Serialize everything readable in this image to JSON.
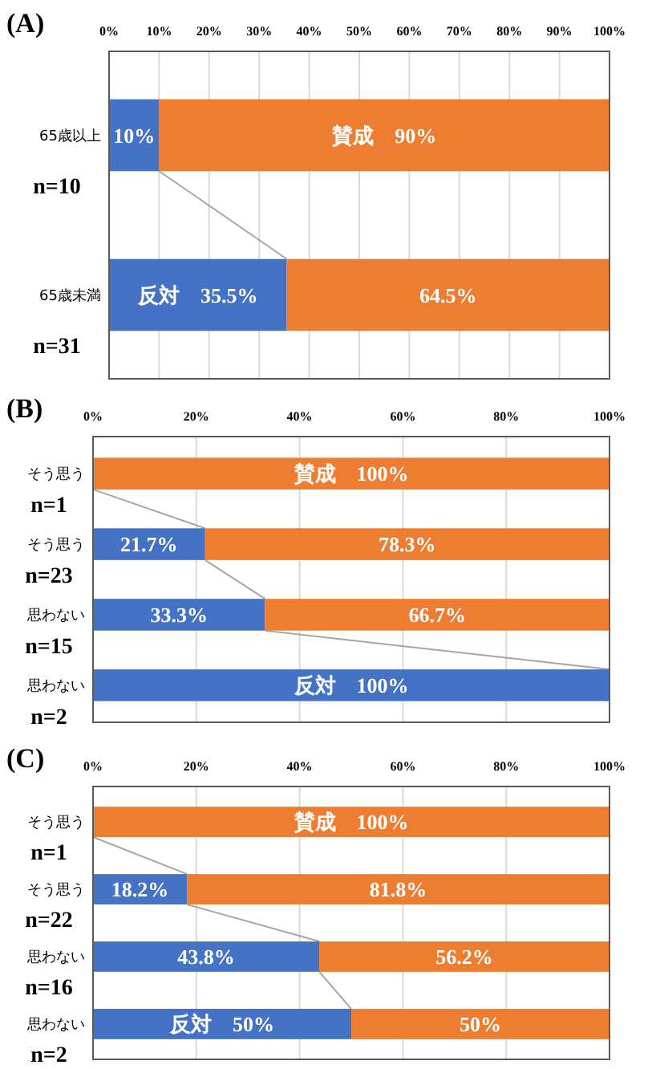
{
  "chart_data": [
    {
      "type": "bar",
      "orientation": "horizontal",
      "stacked": true,
      "title": "(A)",
      "categories": [
        "65歳以上\nn=10",
        "65歳未満\nn=31"
      ],
      "xlim": [
        0,
        100
      ],
      "xticks": [
        {
          "value": 0,
          "label": "0%"
        },
        {
          "value": 10,
          "label": "10%"
        },
        {
          "value": 20,
          "label": "20%"
        },
        {
          "value": 30,
          "label": "30%"
        },
        {
          "value": 40,
          "label": "40%"
        },
        {
          "value": 50,
          "label": "50%"
        },
        {
          "value": 60,
          "label": "60%"
        },
        {
          "value": 70,
          "label": "70%"
        },
        {
          "value": 80,
          "label": "80%"
        },
        {
          "value": 90,
          "label": "90%"
        },
        {
          "value": 100,
          "label": "100%"
        }
      ],
      "grid": "x",
      "series": [
        {
          "color": "#4472c4",
          "values": [
            10,
            35.5
          ],
          "value_labels": [
            "10%",
            "反対　35.5%"
          ]
        },
        {
          "color": "#ed7d31",
          "values": [
            90,
            64.5
          ],
          "value_labels": [
            "賛成　90%",
            "64.5%"
          ]
        }
      ]
    },
    {
      "type": "bar",
      "orientation": "horizontal",
      "stacked": true,
      "title": "(B)",
      "categories": [
        "そう思う\nn=1",
        "そう思う\nn=23",
        "思わない\nn=15",
        "思わない\nn=2"
      ],
      "xlim": [
        0,
        100
      ],
      "xticks": [
        {
          "value": 0,
          "label": "0%"
        },
        {
          "value": 20,
          "label": "20%"
        },
        {
          "value": 40,
          "label": "40%"
        },
        {
          "value": 60,
          "label": "60%"
        },
        {
          "value": 80,
          "label": "80%"
        },
        {
          "value": 100,
          "label": "100%"
        }
      ],
      "grid": "x",
      "series": [
        {
          "color": "#4472c4",
          "values": [
            0,
            21.7,
            33.3,
            100
          ],
          "value_labels": [
            null,
            "21.7%",
            "33.3%",
            "反対　100%"
          ]
        },
        {
          "color": "#ed7d31",
          "values": [
            100,
            78.3,
            66.7,
            0
          ],
          "value_labels": [
            "賛成　100%",
            "78.3%",
            "66.7%",
            null
          ]
        }
      ]
    },
    {
      "type": "bar",
      "orientation": "horizontal",
      "stacked": true,
      "title": "(C)",
      "categories": [
        "そう思う\nn=1",
        "そう思う\nn=22",
        "思わない\nn=16",
        "思わない\nn=2"
      ],
      "xlim": [
        0,
        100
      ],
      "xticks": [
        {
          "value": 0,
          "label": "0%"
        },
        {
          "value": 20,
          "label": "20%"
        },
        {
          "value": 40,
          "label": "40%"
        },
        {
          "value": 60,
          "label": "60%"
        },
        {
          "value": 80,
          "label": "80%"
        },
        {
          "value": 100,
          "label": "100%"
        }
      ],
      "grid": "x",
      "series": [
        {
          "color": "#4472c4",
          "values": [
            0,
            18.2,
            43.8,
            50
          ],
          "value_labels": [
            null,
            "18.2%",
            "43.8%",
            "反対　50%"
          ]
        },
        {
          "color": "#ed7d31",
          "values": [
            100,
            81.8,
            56.2,
            50
          ],
          "value_labels": [
            "賛成　100%",
            "81.8%",
            "56.2%",
            "50%"
          ]
        }
      ]
    }
  ]
}
